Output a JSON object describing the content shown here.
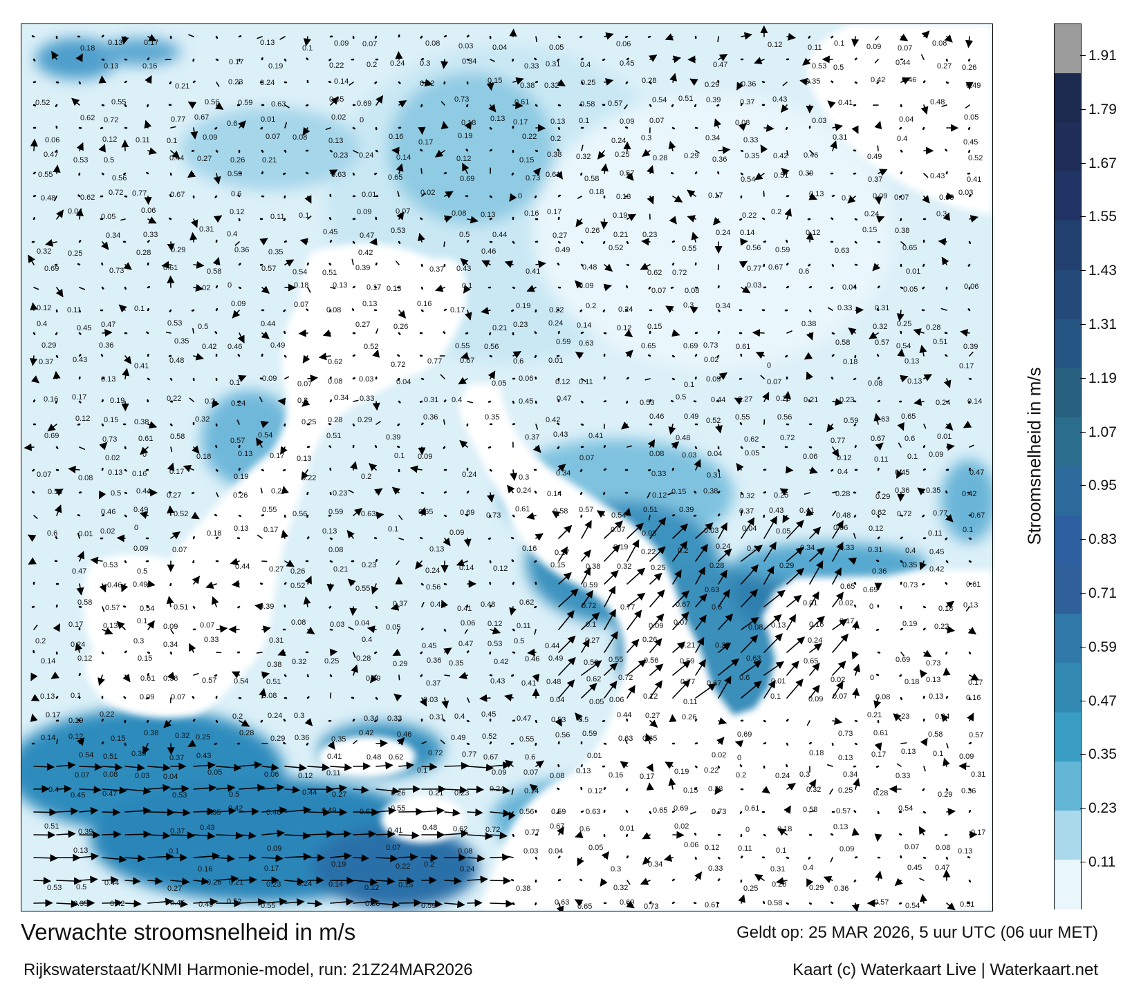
{
  "map": {
    "title": "Verwachte stroomsnelheid in m/s",
    "model_line": "Rijkswaterstaat/KNMI Harmonie-model, run: 21Z24MAR2026",
    "valid_line": "Geldt op: 25 MAR 2026, 5 uur UTC (06 uur MET)",
    "credit_line": "Kaart (c) Waterkaart Live | Waterkaart.net",
    "land_color": "#ffffff",
    "arrow_color": "#000000"
  },
  "colorbar": {
    "title": "Stroomsnelheid in m/s",
    "labels": [
      "1.91",
      "1.79",
      "1.67",
      "1.55",
      "1.43",
      "1.31",
      "1.19",
      "1.07",
      "0.95",
      "0.83",
      "0.71",
      "0.59",
      "0.47",
      "0.35",
      "0.23",
      "0.11"
    ],
    "colors": [
      "#9c9c9c",
      "#1d2a4f",
      "#1f2e58",
      "#203565",
      "#21406f",
      "#234a78",
      "#255582",
      "#286080",
      "#2a6d8c",
      "#2c6a9b",
      "#2e5fa0",
      "#30609a",
      "#2f78a8",
      "#3188b0",
      "#3a9ec4",
      "#63b6d6",
      "#a9d9ea",
      "#e9f6fb"
    ]
  },
  "current_labels": [
    "0.18",
    "0.13",
    "0.17",
    "0.13",
    "0.1",
    "0.09",
    "0.07",
    "0.08",
    "0.03",
    "0.04",
    "0.05",
    "0.06",
    "0.12",
    "0.11",
    "0.1",
    "0.09",
    "0.07",
    "0.08",
    "0.13",
    "0.16",
    "0.17",
    "0.19",
    "0.22",
    "0.2",
    "0.24",
    "0.3",
    "0.34",
    "0.33",
    "0.31",
    "0.4",
    "0.45",
    "0.47",
    "0.53",
    "0.5",
    "0.44",
    "0.27",
    "0.26",
    "0.21",
    "0.23",
    "0.24",
    "0.14",
    "0.12",
    "0.15",
    "0.38",
    "0.32",
    "0.25",
    "0.28",
    "0.29",
    "0.36",
    "0.35",
    "0.42",
    "0.46",
    "0.49",
    "0.52",
    "0.55",
    "0.56",
    "0.59",
    "0.63",
    "0.65",
    "0.69",
    "0.73",
    "0.61",
    "0.58",
    "0.57",
    "0.54",
    "0.51",
    "0.39",
    "0.37",
    "0.43",
    "0.41",
    "0.48",
    "0.62",
    "0.72",
    "0.77",
    "0.67",
    "0.6",
    "0.01",
    "0.02",
    "0"
  ]
}
